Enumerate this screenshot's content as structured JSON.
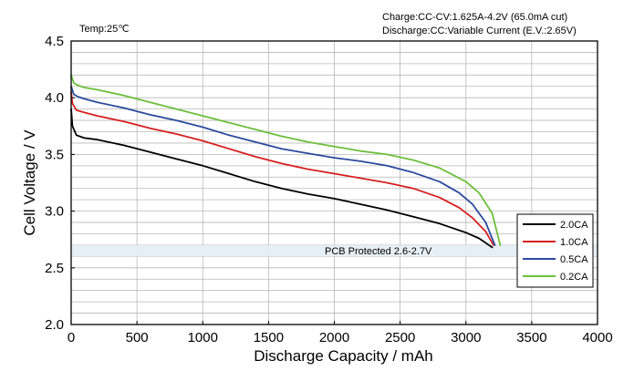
{
  "chart_data": {
    "type": "line",
    "xlabel": "Discharge  Capacity  /  mAh",
    "ylabel": "Cell  Voltage  /  V",
    "xlim": [
      0,
      4000
    ],
    "ylim": [
      2.0,
      4.5
    ],
    "x_ticks": [
      "0",
      "500",
      "1000",
      "1500",
      "2000",
      "2500",
      "3000",
      "3500",
      "4000"
    ],
    "y_ticks": [
      "2.0",
      "2.5",
      "3.0",
      "3.5",
      "4.0",
      "4.5"
    ],
    "grid": true,
    "legend_position": "bottom-right",
    "annotations": {
      "temp": "Temp:25℃",
      "charge": "Charge:CC-CV:1.625A-4.2V (65.0mA cut)",
      "discharge": "Discharge:CC:Variable Current (E.V.:2.65V)",
      "pcb": "PCB Protected 2.6-2.7V"
    },
    "pcb_band": [
      2.6,
      2.7
    ],
    "series": [
      {
        "name": "2.0CA",
        "color": "#000000",
        "points": [
          [
            0,
            3.9
          ],
          [
            10,
            3.75
          ],
          [
            40,
            3.67
          ],
          [
            100,
            3.645
          ],
          [
            200,
            3.63
          ],
          [
            400,
            3.58
          ],
          [
            600,
            3.52
          ],
          [
            800,
            3.46
          ],
          [
            1000,
            3.4
          ],
          [
            1200,
            3.33
          ],
          [
            1400,
            3.26
          ],
          [
            1600,
            3.2
          ],
          [
            1800,
            3.15
          ],
          [
            2000,
            3.11
          ],
          [
            2200,
            3.06
          ],
          [
            2400,
            3.01
          ],
          [
            2600,
            2.95
          ],
          [
            2800,
            2.89
          ],
          [
            3000,
            2.81
          ],
          [
            3100,
            2.76
          ],
          [
            3200,
            2.68
          ]
        ]
      },
      {
        "name": "1.0CA",
        "color": "#d62020",
        "points": [
          [
            0,
            4.05
          ],
          [
            10,
            3.95
          ],
          [
            40,
            3.89
          ],
          [
            100,
            3.87
          ],
          [
            200,
            3.84
          ],
          [
            400,
            3.79
          ],
          [
            600,
            3.73
          ],
          [
            800,
            3.68
          ],
          [
            1000,
            3.62
          ],
          [
            1200,
            3.55
          ],
          [
            1400,
            3.48
          ],
          [
            1600,
            3.42
          ],
          [
            1800,
            3.37
          ],
          [
            2000,
            3.33
          ],
          [
            2200,
            3.29
          ],
          [
            2400,
            3.25
          ],
          [
            2600,
            3.2
          ],
          [
            2800,
            3.12
          ],
          [
            2950,
            3.03
          ],
          [
            3050,
            2.94
          ],
          [
            3150,
            2.82
          ],
          [
            3210,
            2.7
          ]
        ]
      },
      {
        "name": "0.5CA",
        "color": "#2a4a9c",
        "points": [
          [
            0,
            4.1
          ],
          [
            20,
            4.03
          ],
          [
            50,
            4.01
          ],
          [
            100,
            3.99
          ],
          [
            200,
            3.96
          ],
          [
            400,
            3.91
          ],
          [
            600,
            3.85
          ],
          [
            800,
            3.8
          ],
          [
            1000,
            3.74
          ],
          [
            1200,
            3.67
          ],
          [
            1400,
            3.61
          ],
          [
            1600,
            3.55
          ],
          [
            1800,
            3.51
          ],
          [
            2000,
            3.47
          ],
          [
            2200,
            3.44
          ],
          [
            2400,
            3.4
          ],
          [
            2600,
            3.34
          ],
          [
            2800,
            3.26
          ],
          [
            2950,
            3.16
          ],
          [
            3050,
            3.06
          ],
          [
            3150,
            2.9
          ],
          [
            3220,
            2.7
          ]
        ]
      },
      {
        "name": "0.2CA",
        "color": "#6cbf3a",
        "points": [
          [
            0,
            4.2
          ],
          [
            20,
            4.13
          ],
          [
            50,
            4.11
          ],
          [
            100,
            4.09
          ],
          [
            200,
            4.07
          ],
          [
            400,
            4.02
          ],
          [
            600,
            3.96
          ],
          [
            800,
            3.9
          ],
          [
            1000,
            3.84
          ],
          [
            1200,
            3.78
          ],
          [
            1400,
            3.72
          ],
          [
            1600,
            3.66
          ],
          [
            1800,
            3.61
          ],
          [
            2000,
            3.57
          ],
          [
            2200,
            3.53
          ],
          [
            2400,
            3.5
          ],
          [
            2600,
            3.45
          ],
          [
            2800,
            3.38
          ],
          [
            3000,
            3.26
          ],
          [
            3100,
            3.16
          ],
          [
            3200,
            2.98
          ],
          [
            3260,
            2.7
          ]
        ]
      }
    ]
  }
}
